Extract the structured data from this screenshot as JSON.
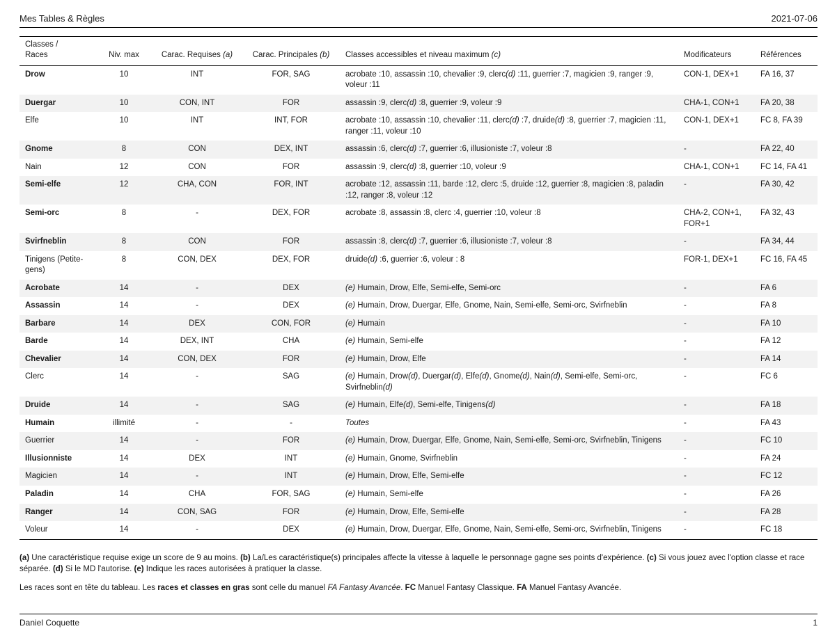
{
  "header": {
    "title": "Mes Tables & Règles",
    "date": "2021-07-06"
  },
  "table": {
    "headers": {
      "races": "Classes /\nRaces",
      "niv": "Niv. max",
      "req": "Carac. Requises <i>(a)</i>",
      "prin": "Carac. Principales <i>(b)</i>",
      "acc": "Classes accessibles et niveau maximum <i>(c)</i>",
      "mod": "Modificateurs",
      "ref": "Références"
    },
    "rows": [
      {
        "race": "Drow",
        "bold": true,
        "niv": "10",
        "req": "INT",
        "prin": "FOR, SAG",
        "acc": "acrobate :10, assassin :10, chevalier :9, clerc<i>(d)</i> :11, guerrier :7, magicien :9, ranger :9, voleur :11",
        "mod": "CON-1, DEX+1",
        "ref": "FA 16, 37"
      },
      {
        "race": "Duergar",
        "bold": true,
        "niv": "10",
        "req": "CON, INT",
        "prin": "FOR",
        "acc": "assassin :9, clerc<i>(d)</i> :8, guerrier :9, voleur :9",
        "mod": "CHA-1, CON+1",
        "ref": "FA 20, 38"
      },
      {
        "race": "Elfe",
        "bold": false,
        "niv": "10",
        "req": "INT",
        "prin": "INT, FOR",
        "acc": "acrobate :10, assassin :10, chevalier :11, clerc<i>(d)</i> :7, druide<i>(d)</i> :8, guerrier :7, magicien :11, ranger :11, voleur :10",
        "mod": "CON-1, DEX+1",
        "ref": "FC 8, FA 39"
      },
      {
        "race": "Gnome",
        "bold": true,
        "niv": "8",
        "req": "CON",
        "prin": "DEX, INT",
        "acc": "assassin :6, clerc<i>(d)</i> :7, guerrier :6, illusioniste :7, voleur :8",
        "mod": "-",
        "ref": "FA 22, 40"
      },
      {
        "race": "Nain",
        "bold": false,
        "niv": "12",
        "req": "CON",
        "prin": "FOR",
        "acc": "assassin :9, clerc<i>(d)</i> :8, guerrier :10, voleur :9",
        "mod": "CHA-1, CON+1",
        "ref": "FC 14, FA 41"
      },
      {
        "race": "Semi-elfe",
        "bold": true,
        "niv": "12",
        "req": "CHA, CON",
        "prin": "FOR, INT",
        "acc": "acrobate :12, assassin :11, barde :12, clerc :5, druide :12, guerrier :8, magicien :8, paladin :12, ranger :8, voleur :12",
        "mod": "-",
        "ref": "FA 30, 42"
      },
      {
        "race": "Semi-orc",
        "bold": true,
        "niv": "8",
        "req": "-",
        "prin": "DEX, FOR",
        "acc": "acrobate :8, assassin :8, clerc :4, guerrier :10, voleur :8",
        "mod": "CHA-2, CON+1, FOR+1",
        "ref": "FA 32, 43"
      },
      {
        "race": "Svirfneblin",
        "bold": true,
        "niv": "8",
        "req": "CON",
        "prin": "FOR",
        "acc": "assassin :8, clerc<i>(d)</i> :7, guerrier :6, illusioniste :7, voleur :8",
        "mod": "-",
        "ref": "FA 34, 44"
      },
      {
        "race": "Tinigens (Petite-gens)",
        "bold": false,
        "niv": "8",
        "req": "CON, DEX",
        "prin": "DEX, FOR",
        "acc": "druide<i>(d)</i> :6, guerrier :6, voleur : 8",
        "mod": "FOR-1, DEX+1",
        "ref": "FC 16, FA 45"
      },
      {
        "race": "Acrobate",
        "bold": true,
        "niv": "14",
        "req": "-",
        "prin": "DEX",
        "acc": "<i>(e)</i> Humain, Drow, Elfe, Semi-elfe, Semi-orc",
        "mod": "-",
        "ref": "FA 6"
      },
      {
        "race": "Assassin",
        "bold": true,
        "niv": "14",
        "req": "-",
        "prin": "DEX",
        "acc": "<i>(e)</i> Humain, Drow, Duergar, Elfe, Gnome, Nain, Semi-elfe, Semi-orc, Svirfneblin",
        "mod": "-",
        "ref": "FA 8"
      },
      {
        "race": "Barbare",
        "bold": true,
        "niv": "14",
        "req": "DEX",
        "prin": "CON, FOR",
        "acc": "<i>(e)</i> Humain",
        "mod": "-",
        "ref": "FA 10"
      },
      {
        "race": "Barde",
        "bold": true,
        "niv": "14",
        "req": "DEX, INT",
        "prin": "CHA",
        "acc": "<i>(e)</i> Humain, Semi-elfe",
        "mod": "-",
        "ref": "FA 12"
      },
      {
        "race": "Chevalier",
        "bold": true,
        "niv": "14",
        "req": "CON, DEX",
        "prin": "FOR",
        "acc": "<i>(e)</i> Humain, Drow, Elfe",
        "mod": "-",
        "ref": "FA 14"
      },
      {
        "race": "Clerc",
        "bold": false,
        "niv": "14",
        "req": "-",
        "prin": "SAG",
        "acc": "<i>(e)</i> Humain, Drow<i>(d)</i>, Duergar<i>(d)</i>, Elfe<i>(d)</i>, Gnome<i>(d)</i>, Nain<i>(d)</i>, Semi-elfe, Semi-orc, Svirfneblin<i>(d)</i>",
        "mod": "-",
        "ref": "FC 6"
      },
      {
        "race": "Druide",
        "bold": true,
        "niv": "14",
        "req": "-",
        "prin": "SAG",
        "acc": "<i>(e)</i> Humain, Elfe<i>(d)</i>, Semi-elfe, Tinigens<i>(d)</i>",
        "mod": "-",
        "ref": "FA 18"
      },
      {
        "race": "Humain",
        "bold": true,
        "niv": "illimité",
        "req": "-",
        "prin": "-",
        "acc": "<i>Toutes</i>",
        "mod": "-",
        "ref": "FA 43"
      },
      {
        "race": "Guerrier",
        "bold": false,
        "niv": "14",
        "req": "-",
        "prin": "FOR",
        "acc": "<i>(e)</i> Humain, Drow, Duergar, Elfe, Gnome, Nain, Semi-elfe, Semi-orc, Svirfneblin, Tinigens",
        "mod": "-",
        "ref": "FC 10"
      },
      {
        "race": "Illusionniste",
        "bold": true,
        "niv": "14",
        "req": "DEX",
        "prin": "INT",
        "acc": "<i>(e)</i> Humain, Gnome, Svirfneblin",
        "mod": "-",
        "ref": "FA 24"
      },
      {
        "race": "Magicien",
        "bold": false,
        "niv": "14",
        "req": "-",
        "prin": "INT",
        "acc": "<i>(e)</i> Humain, Drow, Elfe, Semi-elfe",
        "mod": "-",
        "ref": "FC 12"
      },
      {
        "race": "Paladin",
        "bold": true,
        "niv": "14",
        "req": "CHA",
        "prin": "FOR, SAG",
        "acc": "<i>(e)</i> Humain, Semi-elfe",
        "mod": "-",
        "ref": "FA 26"
      },
      {
        "race": "Ranger",
        "bold": true,
        "niv": "14",
        "req": "CON, SAG",
        "prin": "FOR",
        "acc": "<i>(e)</i> Humain, Drow, Elfe, Semi-elfe",
        "mod": "-",
        "ref": "FA 28"
      },
      {
        "race": "Voleur",
        "bold": false,
        "niv": "14",
        "req": "-",
        "prin": "DEX",
        "acc": "<i>(e)</i> Humain, Drow, Duergar, Elfe, Gnome, Nain, Semi-elfe, Semi-orc, Svirfneblin, Tinigens",
        "mod": "-",
        "ref": "FC 18"
      }
    ]
  },
  "notes": {
    "p1": "<b>(a)</b> Une caractéristique requise exige un score de 9 au moins. <b>(b)</b> La/Les caractéristique(s) principales affecte la vitesse à laquelle le personnage gagne ses points d'expérience. <b>(c)</b> Si vous jouez avec l'option classe et race séparée. <b>(d)</b> Si le MD l'autorise. <b>(e)</b> Indique les races autorisées à pratiquer la classe.",
    "p2": "Les races sont en tête du tableau. Les <b>races et classes en gras</b> sont celle du manuel <i>FA Fantasy Avancée</i>. <b>FC</b> Manuel Fantasy Classique. <b>FA</b> Manuel Fantasy Avancée."
  },
  "footer": {
    "author": "Daniel Coquette",
    "page": "1"
  }
}
